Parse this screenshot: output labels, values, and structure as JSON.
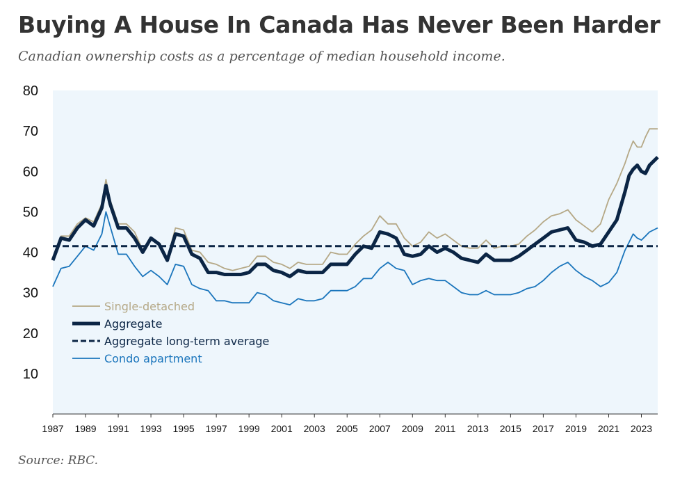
{
  "header": {
    "title": "Buying A House In Canada Has Never Been Harder",
    "subtitle": "Canadian ownership costs as a percentage of median household income."
  },
  "footer": {
    "source": "Source: RBC."
  },
  "colors": {
    "plot_bg": "#eef6fc",
    "single_detached": "#b5a886",
    "aggregate": "#0b2545",
    "long_term_avg": "#0b2545",
    "condo": "#1a75bc"
  },
  "chart_data": {
    "type": "line",
    "title": "Buying A House In Canada Has Never Been Harder",
    "subtitle": "Canadian ownership costs as a percentage of median household income.",
    "xlabel": "",
    "ylabel": "",
    "xlim": [
      1987,
      2024
    ],
    "ylim": [
      0,
      80
    ],
    "yticks": [
      10,
      20,
      30,
      40,
      50,
      60,
      70,
      80
    ],
    "xticks": [
      1987,
      1989,
      1991,
      1993,
      1995,
      1997,
      1999,
      2001,
      2003,
      2005,
      2007,
      2009,
      2011,
      2013,
      2015,
      2017,
      2019,
      2021,
      2023
    ],
    "grid": false,
    "legend_position": "bottom-left",
    "series": [
      {
        "name": "Single-detached",
        "color": "#b5a886",
        "style": "solid",
        "x": [
          1987,
          1987.5,
          1988,
          1988.5,
          1989,
          1989.5,
          1990,
          1990.25,
          1990.5,
          1991,
          1991.5,
          1992,
          1992.5,
          1993,
          1993.5,
          1994,
          1994.5,
          1995,
          1995.5,
          1996,
          1996.5,
          1997,
          1997.5,
          1998,
          1998.5,
          1999,
          1999.5,
          2000,
          2000.5,
          2001,
          2001.5,
          2002,
          2002.5,
          2003,
          2003.5,
          2004,
          2004.5,
          2005,
          2005.5,
          2006,
          2006.5,
          2007,
          2007.5,
          2008,
          2008.5,
          2009,
          2009.5,
          2010,
          2010.5,
          2011,
          2011.5,
          2012,
          2012.5,
          2013,
          2013.5,
          2014,
          2014.5,
          2015,
          2015.5,
          2016,
          2016.5,
          2017,
          2017.5,
          2018,
          2018.5,
          2019,
          2019.5,
          2020,
          2020.5,
          2021,
          2021.5,
          2022,
          2022.25,
          2022.5,
          2022.75,
          2023,
          2023.25,
          2023.5,
          2023.75,
          2024
        ],
        "y": [
          38.5,
          44,
          44,
          47,
          48.5,
          47.5,
          52,
          58,
          53,
          47,
          47,
          45,
          40.5,
          43.5,
          42,
          38.5,
          46,
          45.5,
          40.5,
          40,
          37.5,
          37,
          36,
          35.5,
          36,
          36.5,
          39,
          39,
          37.5,
          37,
          36,
          37.5,
          37,
          37,
          37,
          40,
          39.5,
          39.5,
          42,
          44,
          45.5,
          49,
          47,
          47,
          43.5,
          41.5,
          42.5,
          45,
          43.5,
          44.5,
          43,
          41.5,
          41,
          41,
          43,
          41,
          41.5,
          41.5,
          42,
          44,
          45.5,
          47.5,
          49,
          49.5,
          50.5,
          48,
          46.5,
          45,
          47,
          53,
          57,
          62,
          65,
          67.5,
          66,
          66,
          68.5,
          70.5,
          70.5,
          70.5
        ]
      },
      {
        "name": "Aggregate",
        "color": "#0b2545",
        "style": "thick",
        "x": [
          1987,
          1987.5,
          1988,
          1988.5,
          1989,
          1989.5,
          1990,
          1990.25,
          1990.5,
          1991,
          1991.5,
          1992,
          1992.5,
          1993,
          1993.5,
          1994,
          1994.5,
          1995,
          1995.5,
          1996,
          1996.5,
          1997,
          1997.5,
          1998,
          1998.5,
          1999,
          1999.5,
          2000,
          2000.5,
          2001,
          2001.5,
          2002,
          2002.5,
          2003,
          2003.5,
          2004,
          2004.5,
          2005,
          2005.5,
          2006,
          2006.5,
          2007,
          2007.5,
          2008,
          2008.5,
          2009,
          2009.5,
          2010,
          2010.5,
          2011,
          2011.5,
          2012,
          2012.5,
          2013,
          2013.5,
          2014,
          2014.5,
          2015,
          2015.5,
          2016,
          2016.5,
          2017,
          2017.5,
          2018,
          2018.5,
          2019,
          2019.5,
          2020,
          2020.5,
          2021,
          2021.5,
          2022,
          2022.25,
          2022.5,
          2022.75,
          2023,
          2023.25,
          2023.5,
          2023.75,
          2024
        ],
        "y": [
          38,
          43.5,
          43,
          46,
          48,
          46.5,
          51,
          56.5,
          52,
          46,
          46,
          43.5,
          40,
          43.5,
          42,
          38,
          44.5,
          44,
          39.5,
          38.5,
          35,
          35,
          34.5,
          34.5,
          34.5,
          35,
          37,
          37,
          35.5,
          35,
          34,
          35.5,
          35,
          35,
          35,
          37,
          37,
          37,
          39.5,
          41.5,
          41,
          45,
          44.5,
          43.5,
          39.5,
          39,
          39.5,
          41.5,
          40,
          41,
          40,
          38.5,
          38,
          37.5,
          39.5,
          38,
          38,
          38,
          39,
          40.5,
          42,
          43.5,
          45,
          45.5,
          46,
          43,
          42.5,
          41.5,
          42,
          45,
          48,
          55,
          59,
          60.5,
          61.5,
          60,
          59.5,
          61.5,
          62.5,
          63.5
        ]
      },
      {
        "name": "Aggregate long-term average",
        "color": "#0b2545",
        "style": "dashed",
        "x": [
          1987,
          2024
        ],
        "y": [
          41.5,
          41.5
        ]
      },
      {
        "name": "Condo apartment",
        "color": "#1a75bc",
        "style": "solid",
        "x": [
          1987,
          1987.5,
          1988,
          1988.5,
          1989,
          1989.5,
          1990,
          1990.25,
          1990.5,
          1991,
          1991.5,
          1992,
          1992.5,
          1993,
          1993.5,
          1994,
          1994.5,
          1995,
          1995.5,
          1996,
          1996.5,
          1997,
          1997.5,
          1998,
          1998.5,
          1999,
          1999.5,
          2000,
          2000.5,
          2001,
          2001.5,
          2002,
          2002.5,
          2003,
          2003.5,
          2004,
          2004.5,
          2005,
          2005.5,
          2006,
          2006.5,
          2007,
          2007.5,
          2008,
          2008.5,
          2009,
          2009.5,
          2010,
          2010.5,
          2011,
          2011.5,
          2012,
          2012.5,
          2013,
          2013.5,
          2014,
          2014.5,
          2015,
          2015.5,
          2016,
          2016.5,
          2017,
          2017.5,
          2018,
          2018.5,
          2019,
          2019.5,
          2020,
          2020.5,
          2021,
          2021.5,
          2022,
          2022.25,
          2022.5,
          2022.75,
          2023,
          2023.25,
          2023.5,
          2023.75,
          2024
        ],
        "y": [
          31.5,
          36,
          36.5,
          39,
          41.5,
          40.5,
          44.5,
          50,
          46.5,
          39.5,
          39.5,
          36.5,
          34,
          35.5,
          34,
          32,
          37,
          36.5,
          32,
          31,
          30.5,
          28,
          28,
          27.5,
          27.5,
          27.5,
          30,
          29.5,
          28,
          27.5,
          27,
          28.5,
          28,
          28,
          28.5,
          30.5,
          30.5,
          30.5,
          31.5,
          33.5,
          33.5,
          36,
          37.5,
          36,
          35.5,
          32,
          33,
          33.5,
          33,
          33,
          31.5,
          30,
          29.5,
          29.5,
          30.5,
          29.5,
          29.5,
          29.5,
          30,
          31,
          31.5,
          33,
          35,
          36.5,
          37.5,
          35.5,
          34,
          33,
          31.5,
          32.5,
          35,
          40.5,
          42.5,
          44.5,
          43.5,
          43,
          44,
          45,
          45.5,
          46
        ]
      }
    ]
  }
}
